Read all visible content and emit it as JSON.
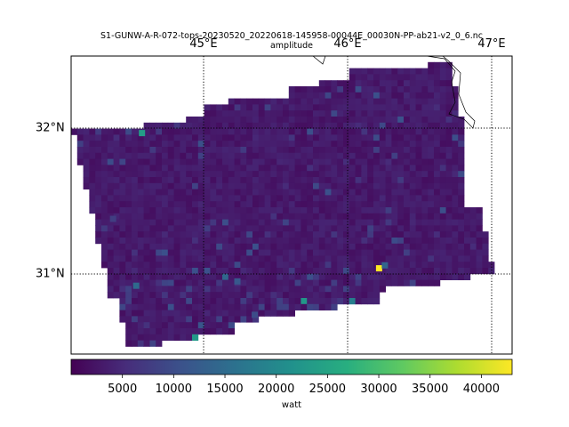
{
  "title": "S1-GUNW-A-R-072-tops-20230520_20220618-145958-00044E_00030N-PP-ab21-v2_0_6.nc",
  "subtitle": "amplitude",
  "chart_data": {
    "type": "heatmap",
    "variable": "amplitude",
    "longitude_ticks": [
      {
        "value": 45,
        "label": "45°E"
      },
      {
        "value": 46,
        "label": "46°E"
      },
      {
        "value": 47,
        "label": "47°E"
      }
    ],
    "latitude_ticks": [
      {
        "value": 32,
        "label": "32°N"
      },
      {
        "value": 31,
        "label": "31°N"
      }
    ],
    "lon_range": [
      44.09,
      47.14
    ],
    "lat_range": [
      30.45,
      32.5
    ],
    "grid": true,
    "colormap": "viridis",
    "colorbar": {
      "orientation": "horizontal",
      "label": "watt",
      "range": [
        0,
        43000
      ],
      "ticks": [
        5000,
        10000,
        15000,
        20000,
        25000,
        30000,
        35000,
        40000
      ],
      "tick_labels": [
        "5000",
        "10000",
        "15000",
        "20000",
        "25000",
        "30000",
        "35000",
        "40000"
      ]
    },
    "typical_value": 3000,
    "hotspots": [
      {
        "lon": 44.58,
        "lat": 31.97,
        "value": 24000
      },
      {
        "lon": 45.24,
        "lat": 30.95,
        "value": 12000
      },
      {
        "lon": 44.54,
        "lat": 30.92,
        "value": 15000
      },
      {
        "lon": 46.22,
        "lat": 31.04,
        "value": 43000
      },
      {
        "lon": 46.26,
        "lat": 31.06,
        "value": 14000
      },
      {
        "lon": 44.38,
        "lat": 31.38,
        "value": 8000
      },
      {
        "lon": 45.36,
        "lat": 30.72,
        "value": 10000
      }
    ]
  }
}
